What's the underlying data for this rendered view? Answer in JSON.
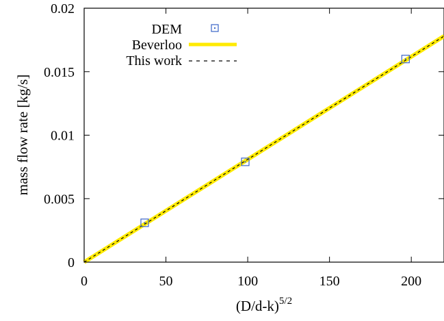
{
  "chart_data": {
    "type": "scatter",
    "title": "",
    "xlabel": "(D/d-k)",
    "xlabel_superscript": "5/2",
    "ylabel": "mass flow rate [kg/s]",
    "xlim": [
      0,
      220
    ],
    "ylim": [
      0,
      0.02
    ],
    "x_ticks": [
      "0",
      "50",
      "100",
      "150",
      "200"
    ],
    "y_ticks": [
      "0",
      "0.005",
      "0.01",
      "0.015",
      "0.02"
    ],
    "x_tick_values": [
      0,
      50,
      100,
      150,
      200
    ],
    "y_tick_values": [
      0,
      0.005,
      0.01,
      0.015,
      0.02
    ],
    "grid": false,
    "legend_position": "top-left",
    "series": [
      {
        "name": "DEM",
        "kind": "markers",
        "marker": "open-square",
        "color": "#3a64c8",
        "x": [
          37,
          98.5,
          196.5
        ],
        "y": [
          0.0031,
          0.0079,
          0.016
        ]
      },
      {
        "name": "Beverloo",
        "kind": "line",
        "style": "solid-thick",
        "color": "#ffea00",
        "x": [
          0,
          220
        ],
        "y": [
          0,
          0.0178
        ]
      },
      {
        "name": "This work",
        "kind": "line",
        "style": "dashed",
        "color": "#000000",
        "x": [
          0,
          220
        ],
        "y": [
          0,
          0.0178
        ]
      }
    ]
  }
}
